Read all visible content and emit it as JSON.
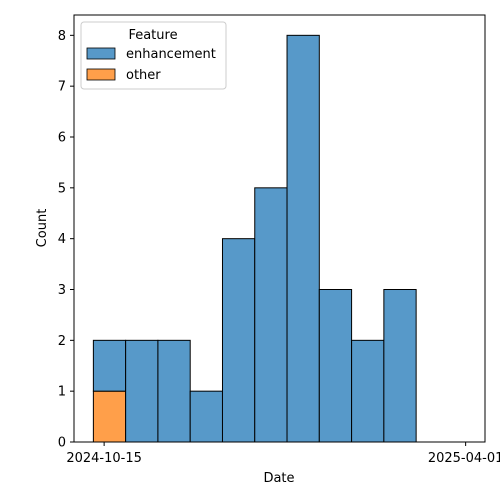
{
  "chart_data": {
    "type": "bar",
    "stacked": true,
    "xlabel": "Date",
    "ylabel": "Count",
    "xlim": [
      "2024-10-01",
      "2025-04-10"
    ],
    "ylim": [
      0,
      8.4
    ],
    "x_ticks": [
      "2024-10-15",
      "2025-04-01"
    ],
    "y_ticks": [
      0,
      1,
      2,
      3,
      4,
      5,
      6,
      7,
      8
    ],
    "legend_title": "Feature",
    "legend_position": "top-left",
    "bins": [
      [
        "2024-10-10",
        "2024-10-25"
      ],
      [
        "2024-10-25",
        "2024-11-09"
      ],
      [
        "2024-11-09",
        "2024-11-24"
      ],
      [
        "2024-11-24",
        "2024-12-09"
      ],
      [
        "2024-12-09",
        "2024-12-24"
      ],
      [
        "2024-12-24",
        "2025-01-08"
      ],
      [
        "2025-01-08",
        "2025-01-23"
      ],
      [
        "2025-01-23",
        "2025-02-07"
      ],
      [
        "2025-02-07",
        "2025-02-22"
      ],
      [
        "2025-02-22",
        "2025-03-09"
      ]
    ],
    "series": [
      {
        "name": "other",
        "color": "#ff9f4a",
        "values": [
          1,
          0,
          0,
          0,
          0,
          0,
          0,
          0,
          0,
          0
        ]
      },
      {
        "name": "enhancement",
        "color": "#5799c9",
        "values": [
          1,
          2,
          2,
          1,
          4,
          5,
          8,
          3,
          2,
          3
        ]
      }
    ]
  }
}
